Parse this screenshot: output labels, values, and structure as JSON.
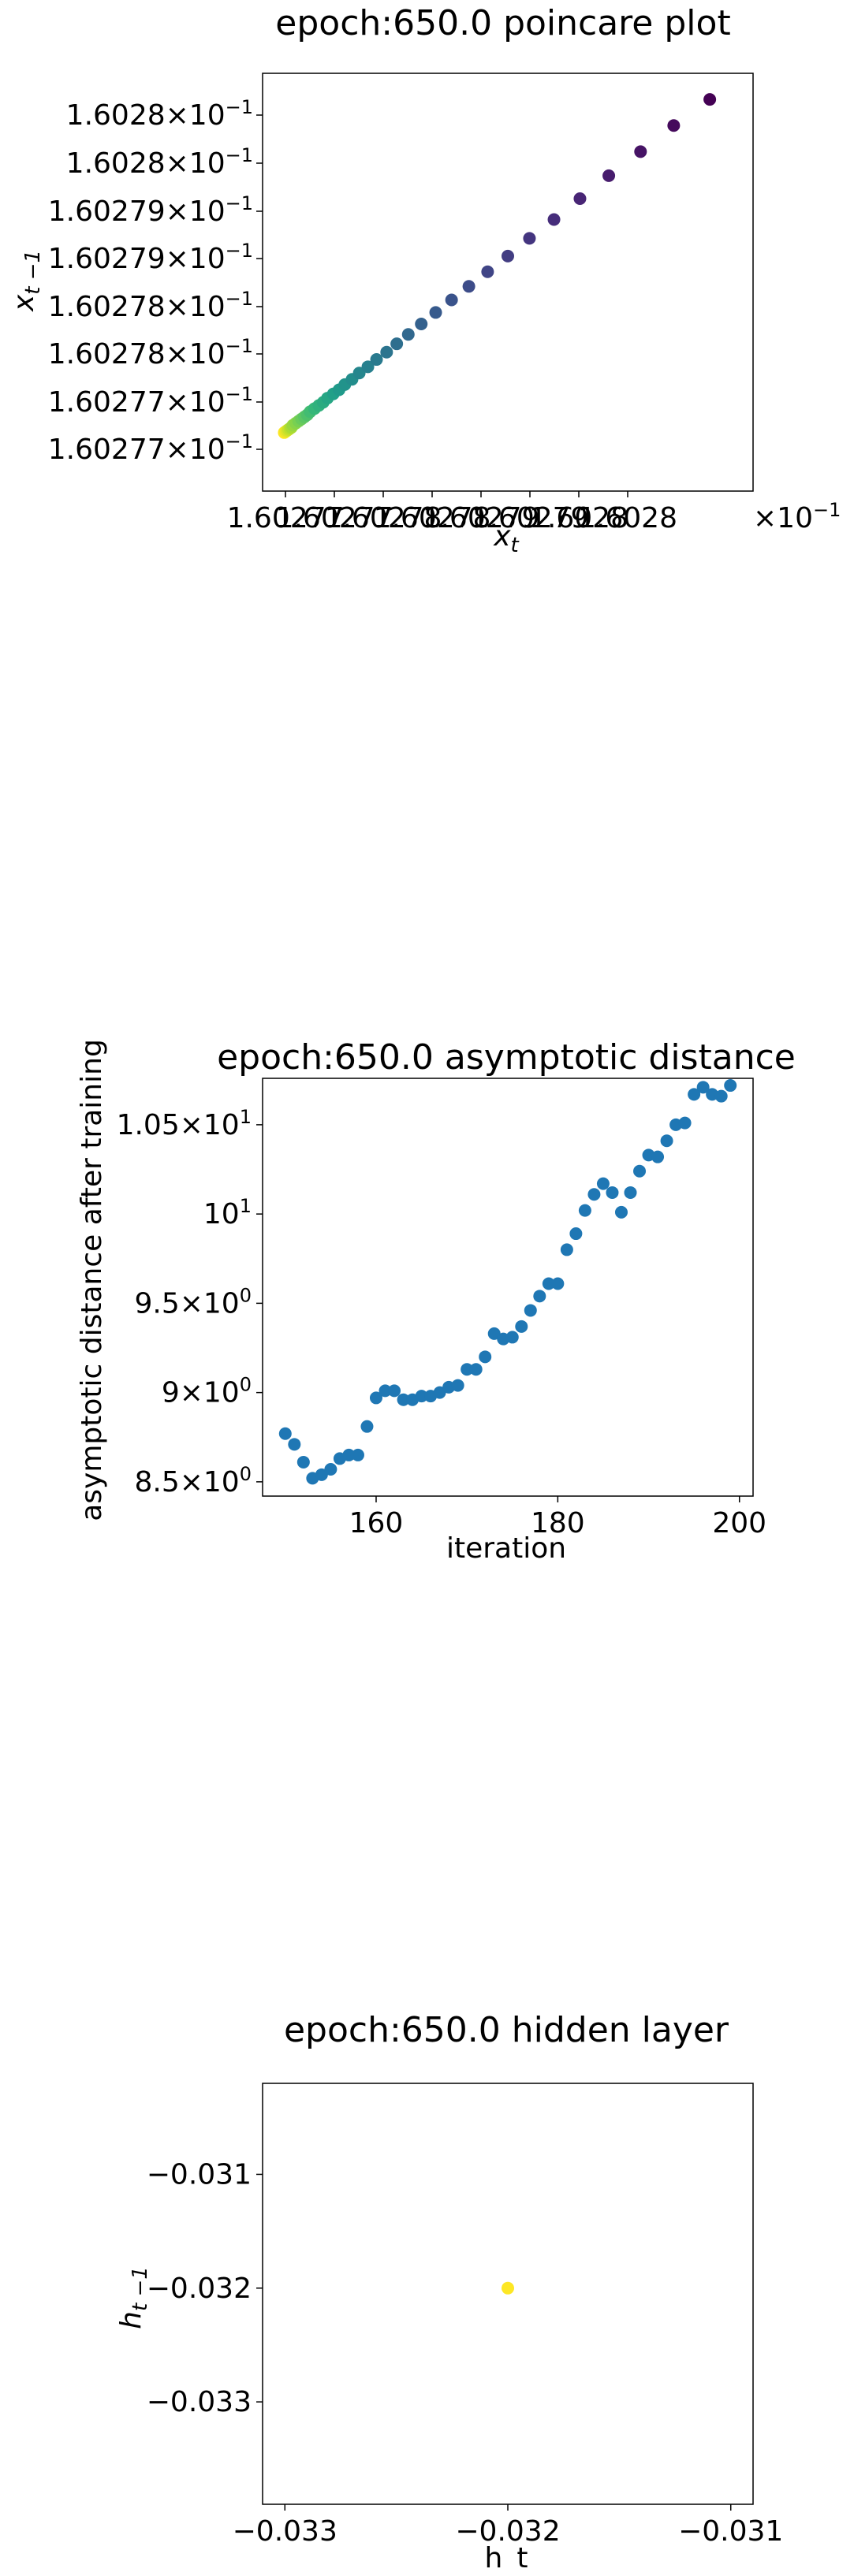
{
  "chart_data": [
    {
      "type": "scatter",
      "title": "epoch:650.0 poincare plot",
      "xlabel": "x_t",
      "ylabel": "x_{t-1}",
      "xticks": [
        "1.60277",
        "1.60277",
        "1.60278",
        "1.60278",
        "1.60279",
        "1.60279",
        "1.6028",
        "1.6028"
      ],
      "xtick_exponent": "×10",
      "xtick_power": "−1",
      "xtick_multiplier": "×10^-1",
      "yticks": [
        "1.60277",
        "1.60277",
        "1.60278",
        "1.60278",
        "1.60279",
        "1.60279",
        "1.6028",
        "1.6028"
      ],
      "ytick_exponent": "×10",
      "ytick_power": "−1",
      "xlim": [
        0.1602769,
        0.1602803
      ],
      "ylim": [
        0.1602765,
        0.1602805
      ],
      "colormap": "viridis",
      "points_note": "sequence from (0.16027705,0.16027705) yellow to (0.16028,0.16028025) purple",
      "series": [
        {
          "x": [
            0.16028,
            0.16027975,
            0.16027952,
            0.1602793,
            0.1602791,
            0.16027892,
            0.16027875,
            0.1602786,
            0.16027846,
            0.16027833,
            0.16027821,
            0.1602781,
            0.160278,
            0.16027791,
            0.16027783,
            0.16027776,
            0.16027769,
            0.16027763,
            0.16027757,
            0.16027752,
            0.16027747,
            0.16027743,
            0.16027739,
            0.16027735,
            0.16027732,
            0.16027729,
            0.16027726,
            0.16027723,
            0.16027721,
            0.16027719,
            0.16027717,
            0.16027715,
            0.16027713,
            0.16027711,
            0.1602771,
            0.16027709,
            0.16027708,
            0.16027707,
            0.16027706,
            0.16027705
          ],
          "y": [
            0.16028025,
            0.16028,
            0.16027975,
            0.16027952,
            0.1602793,
            0.1602791,
            0.16027892,
            0.16027875,
            0.1602786,
            0.16027846,
            0.16027833,
            0.16027821,
            0.1602781,
            0.160278,
            0.16027791,
            0.16027783,
            0.16027776,
            0.16027769,
            0.16027763,
            0.16027757,
            0.16027752,
            0.16027747,
            0.16027743,
            0.16027739,
            0.16027735,
            0.16027732,
            0.16027729,
            0.16027726,
            0.16027723,
            0.16027721,
            0.16027719,
            0.16027717,
            0.16027715,
            0.16027713,
            0.16027711,
            0.1602771,
            0.16027709,
            0.16027708,
            0.16027707,
            0.16027706
          ]
        }
      ]
    },
    {
      "type": "scatter",
      "title": "epoch:650.0 asymptotic distance",
      "xlabel": "iteration",
      "ylabel": "asymptotic distance after training",
      "xticks": [
        160,
        180,
        200
      ],
      "yticks": [
        {
          "value": 8.5,
          "mantissa": "8.5",
          "exp": "0"
        },
        {
          "value": 9.0,
          "mantissa": "9",
          "exp": "0"
        },
        {
          "value": 9.5,
          "mantissa": "9.5",
          "exp": "0"
        },
        {
          "value": 10.0,
          "mantissa": "",
          "exp": "1"
        },
        {
          "value": 10.5,
          "mantissa": "1.05",
          "exp": "1"
        }
      ],
      "xlim": [
        147.5,
        201.5
      ],
      "ylim": [
        8.42,
        10.76
      ],
      "color": "#1f77b4",
      "series": [
        {
          "x": [
            150,
            151,
            152,
            153,
            154,
            155,
            156,
            157,
            158,
            159,
            160,
            161,
            162,
            163,
            164,
            165,
            166,
            167,
            168,
            169,
            170,
            171,
            172,
            173,
            174,
            175,
            176,
            177,
            178,
            179,
            180,
            181,
            182,
            183,
            184,
            185,
            186,
            187,
            188,
            189,
            190,
            191,
            192,
            193,
            194,
            195,
            196,
            197,
            198,
            199
          ],
          "y": [
            8.77,
            8.71,
            8.61,
            8.52,
            8.54,
            8.57,
            8.63,
            8.65,
            8.65,
            8.81,
            8.97,
            9.01,
            9.01,
            8.96,
            8.96,
            8.98,
            8.98,
            9.0,
            9.03,
            9.04,
            9.13,
            9.13,
            9.2,
            9.33,
            9.3,
            9.31,
            9.37,
            9.46,
            9.54,
            9.61,
            9.61,
            9.8,
            9.89,
            10.02,
            10.11,
            10.17,
            10.12,
            10.01,
            10.12,
            10.24,
            10.33,
            10.32,
            10.41,
            10.5,
            10.51,
            10.67,
            10.71,
            10.67,
            10.66,
            10.72
          ]
        }
      ]
    },
    {
      "type": "scatter",
      "title": "epoch:650.0 hidden layer",
      "xlabel": "h_t",
      "ylabel": "h_{t-1}",
      "xticks": [
        "−0.033",
        "−0.032",
        "−0.031"
      ],
      "yticks": [
        "−0.031",
        "−0.032",
        "−0.033"
      ],
      "xlim": [
        -0.0331,
        -0.0309
      ],
      "ylim": [
        -0.0339,
        -0.0302
      ],
      "color": "#fde725",
      "series": [
        {
          "x": [
            -0.032
          ],
          "y": [
            -0.032
          ]
        }
      ]
    }
  ]
}
